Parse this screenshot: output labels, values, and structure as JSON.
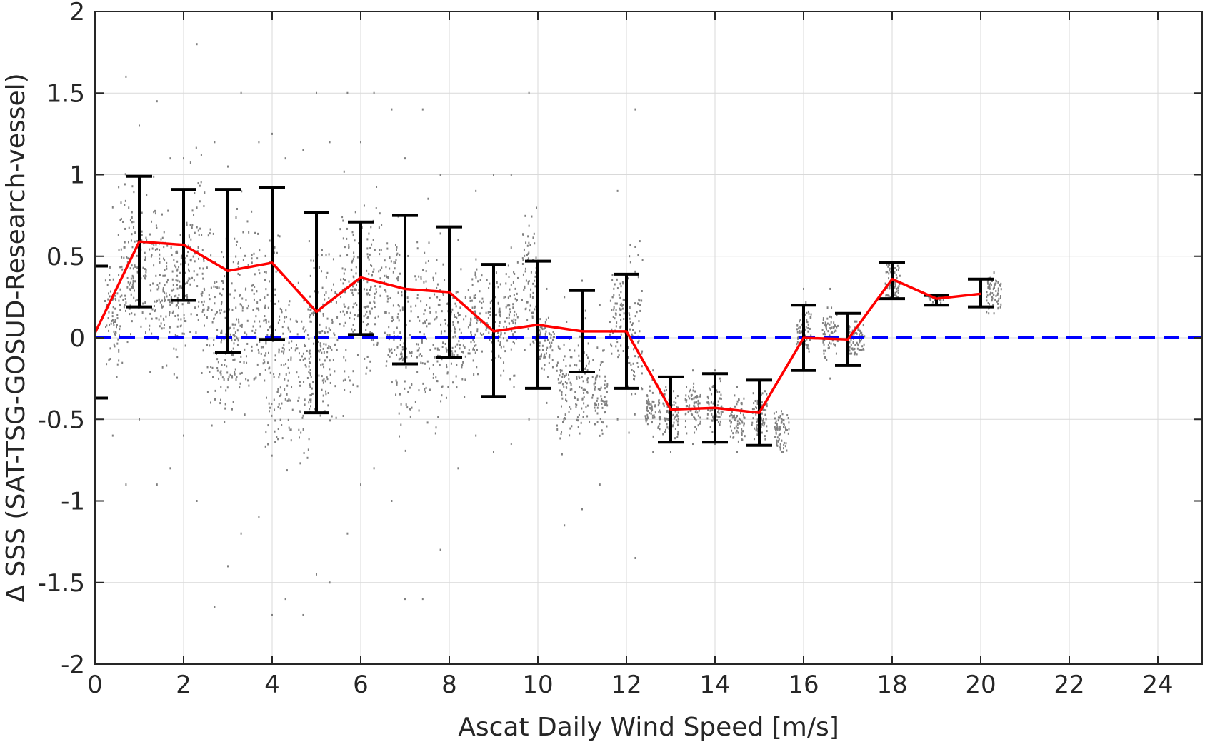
{
  "chart_data": {
    "type": "scatter",
    "xlabel": "Ascat Daily Wind Speed [m/s]",
    "ylabel": "Δ SSS (SAT-TSG-GOSUD-Research-vessel)",
    "xlim": [
      0,
      25
    ],
    "ylim": [
      -2,
      2
    ],
    "xticks": [
      0,
      2,
      4,
      6,
      8,
      10,
      12,
      14,
      16,
      18,
      20,
      22,
      24
    ],
    "yticks": [
      2,
      1.5,
      1,
      0.5,
      0,
      -0.5,
      -1,
      -1.5,
      -2
    ],
    "ytick_labels": [
      "2",
      "1.5",
      "1",
      "0.5",
      "0",
      "-0.5",
      "-1",
      "-1.5",
      "-2"
    ],
    "grid": true,
    "reference_line": {
      "y": 0,
      "style": "dashed",
      "color": "#0000ff"
    },
    "colors": {
      "scatter": "#808080",
      "mean": "#ff0000",
      "errorbar": "#000000",
      "axis": "#262626",
      "grid": "#d9d9d9"
    },
    "series": [
      {
        "type": "line",
        "color": "#ff0000",
        "x": [
          0,
          1,
          2,
          3,
          4,
          5,
          6,
          7,
          8,
          9,
          10,
          11,
          12,
          13,
          14,
          15,
          16,
          17,
          18,
          19,
          20
        ],
        "y": [
          0.03,
          0.59,
          0.57,
          0.41,
          0.46,
          0.16,
          0.37,
          0.3,
          0.28,
          0.04,
          0.08,
          0.04,
          0.04,
          -0.44,
          -0.43,
          -0.46,
          0.0,
          -0.01,
          0.36,
          0.24,
          0.27
        ]
      },
      {
        "type": "errorbar",
        "color": "#000000",
        "x": [
          0,
          1,
          2,
          3,
          4,
          5,
          6,
          7,
          8,
          9,
          10,
          11,
          12,
          13,
          14,
          15,
          16,
          17,
          18,
          19,
          20
        ],
        "low": [
          -0.37,
          0.19,
          0.23,
          -0.09,
          -0.01,
          -0.46,
          0.02,
          -0.16,
          -0.12,
          -0.36,
          -0.31,
          -0.21,
          -0.31,
          -0.64,
          -0.64,
          -0.66,
          -0.2,
          -0.17,
          0.24,
          0.2,
          0.19
        ],
        "high": [
          0.44,
          0.99,
          0.91,
          0.91,
          0.92,
          0.77,
          0.71,
          0.75,
          0.68,
          0.45,
          0.47,
          0.29,
          0.39,
          -0.24,
          -0.22,
          -0.26,
          0.2,
          0.15,
          0.46,
          0.26,
          0.36
        ]
      },
      {
        "type": "scatter",
        "color": "#808080",
        "clusters": [
          {
            "x": 0.4,
            "ymin": -0.6,
            "ymax": 0.8,
            "ymean": 0.1
          },
          {
            "x": 0.7,
            "ymin": -0.9,
            "ymax": 1.6,
            "ymean": 0.6
          },
          {
            "x": 1.0,
            "ymin": -0.5,
            "ymax": 1.3,
            "ymean": 0.6
          },
          {
            "x": 1.4,
            "ymin": -0.9,
            "ymax": 1.45,
            "ymean": 0.55
          },
          {
            "x": 1.7,
            "ymin": -0.8,
            "ymax": 1.1,
            "ymean": 0.4
          },
          {
            "x": 2.0,
            "ymin": -0.6,
            "ymax": 1.1,
            "ymean": 0.55
          },
          {
            "x": 2.3,
            "ymin": -1.0,
            "ymax": 1.8,
            "ymean": 0.5
          },
          {
            "x": 2.7,
            "ymin": -1.65,
            "ymax": 1.2,
            "ymean": 0.3
          },
          {
            "x": 3.0,
            "ymin": -1.4,
            "ymax": 1.05,
            "ymean": 0.3
          },
          {
            "x": 3.3,
            "ymin": -1.2,
            "ymax": 1.5,
            "ymean": 0.2
          },
          {
            "x": 3.7,
            "ymin": -1.1,
            "ymax": 1.2,
            "ymean": 0.35
          },
          {
            "x": 4.0,
            "ymin": -1.7,
            "ymax": 1.25,
            "ymean": 0.25
          },
          {
            "x": 4.3,
            "ymin": -1.6,
            "ymax": 1.1,
            "ymean": 0.0
          },
          {
            "x": 4.7,
            "ymin": -1.7,
            "ymax": 1.15,
            "ymean": -0.1
          },
          {
            "x": 5.0,
            "ymin": -1.45,
            "ymax": 1.5,
            "ymean": 0.1
          },
          {
            "x": 5.3,
            "ymin": -1.5,
            "ymax": 1.2,
            "ymean": 0.2
          },
          {
            "x": 5.7,
            "ymin": -1.2,
            "ymax": 1.5,
            "ymean": 0.3
          },
          {
            "x": 6.0,
            "ymin": -0.9,
            "ymax": 1.2,
            "ymean": 0.35
          },
          {
            "x": 6.3,
            "ymin": -0.8,
            "ymax": 1.5,
            "ymean": 0.35
          },
          {
            "x": 6.7,
            "ymin": -1.0,
            "ymax": 1.4,
            "ymean": 0.25
          },
          {
            "x": 7.0,
            "ymin": -1.6,
            "ymax": 1.1,
            "ymean": 0.2
          },
          {
            "x": 7.4,
            "ymin": -1.6,
            "ymax": 1.4,
            "ymean": 0.15
          },
          {
            "x": 7.8,
            "ymin": -1.3,
            "ymax": 1.0,
            "ymean": 0.2
          },
          {
            "x": 8.2,
            "ymin": -0.8,
            "ymax": 0.6,
            "ymean": 0.15
          },
          {
            "x": 8.6,
            "ymin": -0.6,
            "ymax": 0.9,
            "ymean": 0.1
          },
          {
            "x": 9.0,
            "ymin": -0.7,
            "ymax": 1.0,
            "ymean": 0.05
          },
          {
            "x": 9.4,
            "ymin": -0.65,
            "ymax": 1.0,
            "ymean": 0.1
          },
          {
            "x": 9.8,
            "ymin": -0.5,
            "ymax": 1.5,
            "ymean": 0.15
          },
          {
            "x": 10.2,
            "ymin": -0.4,
            "ymax": 0.3,
            "ymean": 0.0
          },
          {
            "x": 10.6,
            "ymin": -1.15,
            "ymax": 0.25,
            "ymean": -0.1
          },
          {
            "x": 11.0,
            "ymin": -1.05,
            "ymax": 0.35,
            "ymean": -0.15
          },
          {
            "x": 11.4,
            "ymin": -0.9,
            "ymax": 0.2,
            "ymean": -0.3
          },
          {
            "x": 11.8,
            "ymin": -0.5,
            "ymax": 0.9,
            "ymean": 0.1
          },
          {
            "x": 12.2,
            "ymin": -1.35,
            "ymax": 1.4,
            "ymean": 0.0
          },
          {
            "x": 12.6,
            "ymin": -0.7,
            "ymax": -0.2,
            "ymean": -0.45
          },
          {
            "x": 13.0,
            "ymin": -0.7,
            "ymax": -0.25,
            "ymean": -0.45
          },
          {
            "x": 13.5,
            "ymin": -0.65,
            "ymax": -0.2,
            "ymean": -0.42
          },
          {
            "x": 14.0,
            "ymin": -0.65,
            "ymax": -0.2,
            "ymean": -0.43
          },
          {
            "x": 14.5,
            "ymin": -0.7,
            "ymax": -0.3,
            "ymean": -0.5
          },
          {
            "x": 15.0,
            "ymin": -0.65,
            "ymax": -0.3,
            "ymean": -0.47
          },
          {
            "x": 15.5,
            "ymin": -0.7,
            "ymax": -0.45,
            "ymean": -0.55
          },
          {
            "x": 16.0,
            "ymin": -0.15,
            "ymax": 0.3,
            "ymean": 0.0
          },
          {
            "x": 16.6,
            "ymin": -0.25,
            "ymax": 0.3,
            "ymean": 0.0
          },
          {
            "x": 17.2,
            "ymin": -0.1,
            "ymax": 0.1,
            "ymean": 0.0
          },
          {
            "x": 18.0,
            "ymin": 0.25,
            "ymax": 0.45,
            "ymean": 0.35
          },
          {
            "x": 19.0,
            "ymin": 0.2,
            "ymax": 0.25,
            "ymean": 0.23
          },
          {
            "x": 20.3,
            "ymin": 0.15,
            "ymax": 0.4,
            "ymean": 0.27
          }
        ]
      }
    ]
  }
}
